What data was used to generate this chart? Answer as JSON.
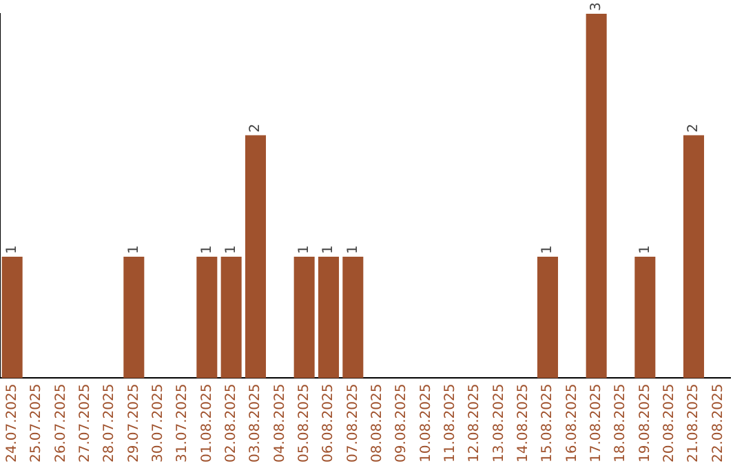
{
  "chart_data": {
    "type": "bar",
    "categories": [
      "24.07.2025",
      "25.07.2025",
      "26.07.2025",
      "27.07.2025",
      "28.07.2025",
      "29.07.2025",
      "30.07.2025",
      "31.07.2025",
      "01.08.2025",
      "02.08.2025",
      "03.08.2025",
      "04.08.2025",
      "05.08.2025",
      "06.08.2025",
      "07.08.2025",
      "08.08.2025",
      "09.08.2025",
      "10.08.2025",
      "11.08.2025",
      "12.08.2025",
      "13.08.2025",
      "14.08.2025",
      "15.08.2025",
      "16.08.2025",
      "17.08.2025",
      "18.08.2025",
      "19.08.2025",
      "20.08.2025",
      "21.08.2025",
      "22.08.2025"
    ],
    "values": [
      1,
      0,
      0,
      0,
      0,
      1,
      0,
      0,
      1,
      1,
      2,
      0,
      1,
      1,
      1,
      0,
      0,
      0,
      0,
      0,
      0,
      0,
      1,
      0,
      3,
      0,
      1,
      0,
      2,
      0
    ],
    "value_labels": [
      "1",
      null,
      null,
      null,
      null,
      "1",
      null,
      null,
      "1",
      "1",
      "2",
      null,
      "1",
      "1",
      "1",
      null,
      null,
      null,
      null,
      null,
      null,
      null,
      "1",
      null,
      "3",
      null,
      "1",
      null,
      "2",
      null
    ],
    "color": "#a0522d",
    "ylim": [
      0,
      3
    ],
    "tick_labels": "x",
    "grid": false,
    "legend": false
  }
}
